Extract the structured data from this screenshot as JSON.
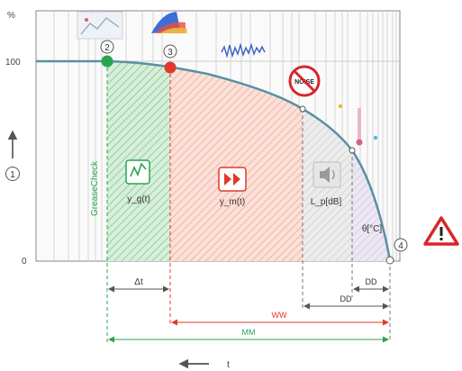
{
  "axis": {
    "y_unit": "%",
    "y_top": "100",
    "y_zero": "0",
    "y_marker": "1",
    "x_label": "t"
  },
  "points": [
    "2",
    "3",
    "4"
  ],
  "zone_labels": {
    "green_vertical": "GreaseCheck",
    "green": "y_g(t)",
    "red": "y_m(t)",
    "gray": "L_p[dB]",
    "right": "θ[°C]"
  },
  "noise_icon_text": "NOISE",
  "intervals": {
    "dt": "Δt",
    "dd_upper": "DD",
    "dd_lower": "DD",
    "ww": "WW",
    "mm": "MM"
  },
  "colors": {
    "curve": "#5b8fa3",
    "green": "#2aa44f",
    "red": "#e0392b",
    "warning": "#d7262b"
  }
}
